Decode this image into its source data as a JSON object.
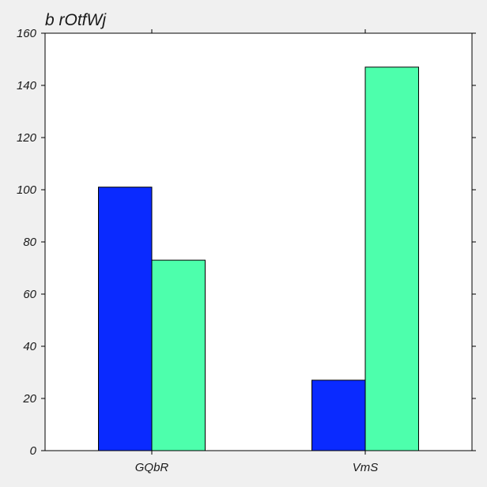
{
  "chart_data": {
    "type": "bar",
    "title": "b rOtfWj",
    "xlabel": "",
    "ylabel": "",
    "categories": [
      "GQbR",
      "VmS"
    ],
    "series": [
      {
        "values": [
          101,
          27
        ],
        "color": "#0a2aff"
      },
      {
        "values": [
          73,
          147
        ],
        "color": "#4dffac"
      }
    ],
    "ylim": [
      0,
      160
    ],
    "yticks": [
      0,
      20,
      40,
      60,
      80,
      100,
      120,
      140,
      160
    ],
    "grid": false,
    "legend": "none"
  }
}
